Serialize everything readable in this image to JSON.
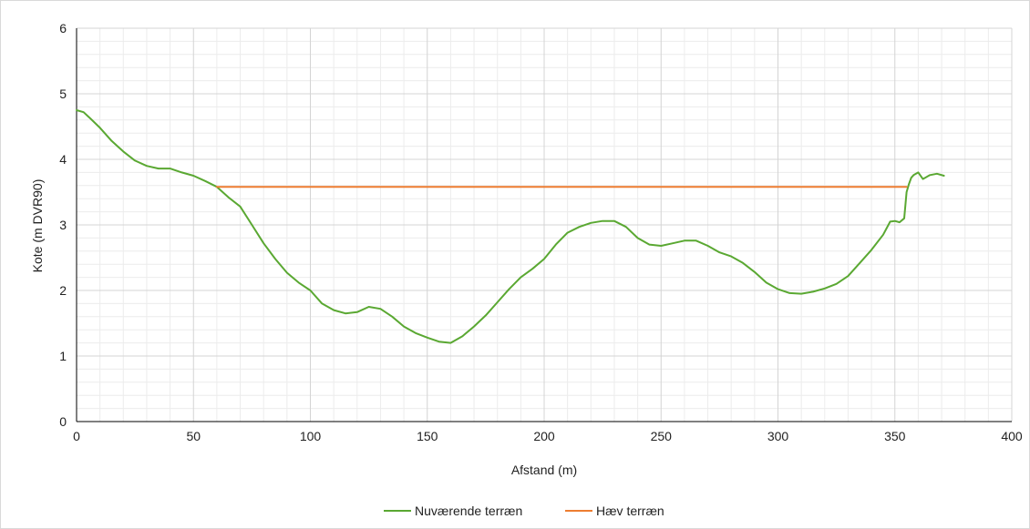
{
  "chart_data": {
    "type": "line",
    "title": "",
    "xlabel": "Afstand (m)",
    "ylabel": "Kote (m DVR90)",
    "xlim": [
      0,
      400
    ],
    "ylim": [
      0,
      6
    ],
    "x_ticks": [
      "0",
      "50",
      "100",
      "150",
      "200",
      "250",
      "300",
      "350",
      "400"
    ],
    "y_ticks": [
      "0",
      "1",
      "2",
      "3",
      "4",
      "5",
      "6"
    ],
    "grid": true,
    "minor_grid": true,
    "legend_position": "bottom",
    "series": [
      {
        "name": "Nuværende terræn",
        "color": "#5aa832",
        "x": [
          0,
          3,
          6,
          10,
          15,
          20,
          25,
          30,
          35,
          40,
          45,
          50,
          55,
          60,
          65,
          70,
          75,
          80,
          85,
          90,
          95,
          100,
          105,
          110,
          115,
          120,
          125,
          130,
          135,
          140,
          145,
          150,
          155,
          160,
          165,
          170,
          175,
          180,
          185,
          190,
          195,
          200,
          205,
          210,
          215,
          220,
          225,
          230,
          235,
          240,
          245,
          250,
          255,
          260,
          265,
          270,
          275,
          280,
          285,
          290,
          295,
          300,
          305,
          310,
          315,
          320,
          325,
          330,
          335,
          340,
          345,
          348,
          350,
          352,
          354,
          355,
          356,
          357,
          358,
          360,
          362,
          365,
          368,
          371
        ],
        "y": [
          4.75,
          4.72,
          4.62,
          4.48,
          4.28,
          4.12,
          3.98,
          3.9,
          3.86,
          3.86,
          3.8,
          3.75,
          3.67,
          3.58,
          3.42,
          3.28,
          3.0,
          2.72,
          2.48,
          2.27,
          2.12,
          2.0,
          1.8,
          1.7,
          1.65,
          1.67,
          1.75,
          1.72,
          1.6,
          1.45,
          1.35,
          1.28,
          1.22,
          1.2,
          1.3,
          1.45,
          1.62,
          1.82,
          2.02,
          2.2,
          2.33,
          2.48,
          2.7,
          2.88,
          2.97,
          3.03,
          3.06,
          3.06,
          2.97,
          2.8,
          2.7,
          2.68,
          2.72,
          2.76,
          2.76,
          2.68,
          2.58,
          2.52,
          2.42,
          2.28,
          2.12,
          2.02,
          1.96,
          1.95,
          1.98,
          2.03,
          2.1,
          2.22,
          2.42,
          2.62,
          2.85,
          3.05,
          3.06,
          3.04,
          3.1,
          3.5,
          3.62,
          3.72,
          3.76,
          3.8,
          3.7,
          3.76,
          3.78,
          3.75
        ]
      },
      {
        "name": "Hæv terræn",
        "color": "#ed7d31",
        "x": [
          60,
          355
        ],
        "y": [
          3.58,
          3.58
        ]
      }
    ]
  }
}
